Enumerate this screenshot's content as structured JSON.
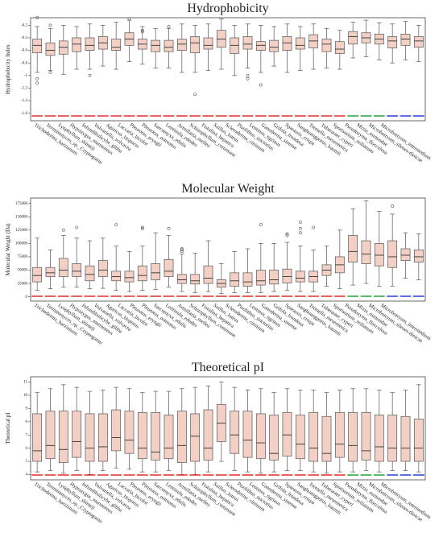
{
  "chart_data": [
    {
      "type": "box",
      "title": "Hydrophobicity",
      "ylabel": "Hydrophobicity Index",
      "categories": [
        "Trichoderma_harzianum",
        "Termitomyces_sp._Cryptogamu",
        "Lyophyllum_shimeji",
        "Hypsizygus_marmoreus",
        "Infundibulicybe_gibba",
        "Volvariella_volvacea",
        "Agaricus_bisporus",
        "Laccaria_bicolor",
        "Pleurotus_eryngii",
        "Pleurotus_ostreatus",
        "Sarcomyxa_edulis",
        "Lentinula_edodes",
        "Armillaria_mellea",
        "Schizophyllum_commune",
        "Fistulina_hepatica",
        "Suillus_luteus",
        "Scleroderma_citrinum",
        "Pisolithus_tinctorius",
        "Lentinus_tigrinus",
        "Ganoderma_sinense",
        "Grifola_frondosa",
        "Sparassis_crispa",
        "Sanghuangporus_baumii",
        "Tremella_mesenterica",
        "Tuberaster_cyperi",
        "Sporisorium_reilianum",
        "Pseudozyma_flocculosa",
        "Mixia_osmundae",
        "Microbotryum_silenes-dioicae",
        "Microbotryum_intermedium"
      ],
      "category_colors": [
        "#e0201c",
        "#e0201c",
        "#e0201c",
        "#e0201c",
        "#e0201c",
        "#e0201c",
        "#e0201c",
        "#e0201c",
        "#e0201c",
        "#e0201c",
        "#e0201c",
        "#e0201c",
        "#e0201c",
        "#e0201c",
        "#e0201c",
        "#e0201c",
        "#e0201c",
        "#e0201c",
        "#e0201c",
        "#e0201c",
        "#e0201c",
        "#e0201c",
        "#e0201c",
        "#e0201c",
        "#1a9a2a",
        "#1a9a2a",
        "#1a9a2a",
        "#1c2fd6",
        "#1c2fd6",
        "#1c2fd6"
      ],
      "box_color": "#f2d0c6",
      "whisker_low": [
        -0.95,
        -0.92,
        -0.98,
        -0.9,
        -0.9,
        -0.85,
        -0.9,
        -0.78,
        -0.82,
        -0.88,
        -0.88,
        -0.95,
        -0.95,
        -0.92,
        -0.9,
        -1.0,
        -0.88,
        -0.95,
        -0.85,
        -0.95,
        -0.92,
        -0.9,
        -0.88,
        -0.9,
        -0.72,
        -0.7,
        -0.75,
        -0.8,
        -0.75,
        -0.78
      ],
      "q1": [
        -0.64,
        -0.68,
        -0.66,
        -0.62,
        -0.6,
        -0.58,
        -0.6,
        -0.52,
        -0.58,
        -0.62,
        -0.62,
        -0.6,
        -0.64,
        -0.58,
        -0.55,
        -0.65,
        -0.58,
        -0.6,
        -0.62,
        -0.6,
        -0.58,
        -0.56,
        -0.62,
        -0.65,
        -0.5,
        -0.48,
        -0.5,
        -0.56,
        -0.52,
        -0.55
      ],
      "median": [
        -0.52,
        -0.6,
        -0.55,
        -0.5,
        -0.52,
        -0.48,
        -0.55,
        -0.42,
        -0.5,
        -0.52,
        -0.55,
        -0.5,
        -0.48,
        -0.52,
        -0.42,
        -0.52,
        -0.5,
        -0.52,
        -0.55,
        -0.48,
        -0.52,
        -0.45,
        -0.5,
        -0.58,
        -0.38,
        -0.4,
        -0.42,
        -0.45,
        -0.42,
        -0.45
      ],
      "q3": [
        -0.42,
        -0.48,
        -0.45,
        -0.4,
        -0.4,
        -0.38,
        -0.42,
        -0.32,
        -0.42,
        -0.44,
        -0.44,
        -0.42,
        -0.38,
        -0.4,
        -0.28,
        -0.4,
        -0.38,
        -0.46,
        -0.44,
        -0.38,
        -0.4,
        -0.35,
        -0.42,
        -0.46,
        -0.3,
        -0.32,
        -0.34,
        -0.38,
        -0.34,
        -0.38
      ],
      "whisker_high": [
        -0.22,
        -0.25,
        -0.2,
        -0.22,
        -0.18,
        -0.2,
        -0.15,
        -0.12,
        -0.22,
        -0.25,
        -0.25,
        -0.18,
        -0.2,
        -0.18,
        -0.1,
        -0.2,
        -0.18,
        -0.2,
        -0.22,
        -0.18,
        -0.22,
        -0.18,
        -0.25,
        -0.28,
        -0.15,
        -0.12,
        -0.16,
        -0.18,
        -0.14,
        -0.2
      ],
      "outliers": [
        [
          -0.08,
          -1.05,
          -1.12
        ],
        [
          -0.2,
          -0.95
        ],
        [],
        [],
        [
          -1.0
        ],
        [],
        [],
        [
          -0.1
        ],
        [
          -0.28,
          -0.3
        ],
        [],
        [
          -0.22
        ],
        [],
        [
          -1.3
        ],
        [],
        [],
        [],
        [
          -1.0,
          -1.05
        ],
        [
          -1.15
        ],
        [],
        [],
        [],
        [],
        [],
        [],
        [],
        [],
        [],
        [],
        [],
        []
      ],
      "ylim": [
        -1.72,
        -0.08
      ],
      "yticks": [
        -1.6,
        -1.4,
        -1.2,
        -1.0,
        -0.8,
        -0.6,
        -0.4,
        -0.2
      ]
    },
    {
      "type": "box",
      "title": "Molecular Weight",
      "ylabel": "Molecular Weight (Da)",
      "categories": [
        "Trichoderma_harzianum",
        "Termitomyces_sp._Cryptogamu",
        "Lyophyllum_shimeji",
        "Hypsizygus_marmoreus",
        "Infundibulicybe_gibba",
        "Volvariella_volvacea",
        "Agaricus_bisporus",
        "Laccaria_bicolor",
        "Pleurotus_eryngii",
        "Pleurotus_ostreatus",
        "Sarcomyxa_edulis",
        "Lentinula_edodes",
        "Armillaria_mellea",
        "Schizophyllum_commune",
        "Fistulina_hepatica",
        "Suillus_luteus",
        "Scleroderma_citrinum",
        "Pisolithus_tinctorius",
        "Lentinus_tigrinus",
        "Ganoderma_sinense",
        "Grifola_frondosa",
        "Sparassis_crispa",
        "Sanghuangporus_baumii",
        "Tremella_mesenterica",
        "Tuberaster_cyperi",
        "Sporisorium_reilianum",
        "Pseudozyma_flocculosa",
        "Mixia_osmundae",
        "Microbotryum_silenes-dioicae",
        "Microbotryum_intermedium"
      ],
      "category_colors": [
        "#e0201c",
        "#e0201c",
        "#e0201c",
        "#e0201c",
        "#e0201c",
        "#e0201c",
        "#e0201c",
        "#e0201c",
        "#e0201c",
        "#e0201c",
        "#e0201c",
        "#e0201c",
        "#e0201c",
        "#e0201c",
        "#e0201c",
        "#e0201c",
        "#e0201c",
        "#e0201c",
        "#e0201c",
        "#e0201c",
        "#e0201c",
        "#e0201c",
        "#e0201c",
        "#e0201c",
        "#1a9a2a",
        "#1a9a2a",
        "#1a9a2a",
        "#1c2fd6",
        "#1c2fd6",
        "#1c2fd6"
      ],
      "box_color": "#f2d0c6",
      "whisker_low": [
        12000,
        15000,
        18000,
        18000,
        15000,
        16000,
        12000,
        10000,
        12000,
        14000,
        18000,
        10000,
        8000,
        10000,
        6000,
        8000,
        8000,
        8000,
        10000,
        12000,
        10000,
        10000,
        20000,
        15000,
        22000,
        25000,
        20000,
        20000,
        35000,
        32000
      ],
      "q1": [
        28000,
        38000,
        38000,
        38000,
        30000,
        38000,
        30000,
        28000,
        30000,
        32000,
        38000,
        25000,
        24000,
        25000,
        18000,
        20000,
        20000,
        22000,
        24000,
        26000,
        28000,
        28000,
        40000,
        45000,
        65000,
        62000,
        58000,
        55000,
        68000,
        65000
      ],
      "median": [
        40000,
        45000,
        50000,
        48000,
        42000,
        50000,
        38000,
        36000,
        40000,
        45000,
        48000,
        32000,
        30000,
        35000,
        25000,
        30000,
        28000,
        30000,
        32000,
        38000,
        35000,
        38000,
        50000,
        60000,
        85000,
        80000,
        78000,
        75000,
        78000,
        75000
      ],
      "q3": [
        55000,
        55000,
        72000,
        62000,
        58000,
        68000,
        48000,
        48000,
        58000,
        62000,
        70000,
        42000,
        42000,
        58000,
        32000,
        45000,
        45000,
        50000,
        50000,
        52000,
        48000,
        48000,
        60000,
        75000,
        115000,
        105000,
        100000,
        105000,
        90000,
        88000
      ],
      "whisker_high": [
        110000,
        88000,
        115000,
        110000,
        105000,
        110000,
        95000,
        85000,
        95000,
        120000,
        115000,
        80000,
        82000,
        105000,
        62000,
        85000,
        90000,
        100000,
        100000,
        102000,
        95000,
        88000,
        95000,
        125000,
        165000,
        180000,
        160000,
        155000,
        120000,
        118000
      ],
      "outliers": [
        [],
        [],
        [
          125000
        ],
        [
          130000
        ],
        [],
        [],
        [
          135000
        ],
        [],
        [
          130000,
          128000
        ],
        [],
        [
          128000
        ],
        [
          90000,
          88000,
          85000
        ],
        [],
        [],
        [],
        [],
        [],
        [
          135000
        ],
        [],
        [
          118000,
          115000
        ],
        [
          140000,
          128000,
          120000
        ],
        [
          130000
        ],
        [],
        [],
        [],
        [],
        [],
        [
          170000
        ],
        [],
        []
      ],
      "ylim": [
        -8000,
        185000
      ],
      "yticks": [
        0,
        25000,
        50000,
        75000,
        100000,
        125000,
        150000,
        175000
      ]
    },
    {
      "type": "box",
      "title": "Theoretical pI",
      "ylabel": "Theoretical pI",
      "categories": [
        "Trichoderma_harzianum",
        "Termitomyces_sp._Cryptogamu",
        "Lyophyllum_shimeji",
        "Hypsizygus_marmoreus",
        "Infundibulicybe_gibba",
        "Volvariella_volvacea",
        "Agaricus_bisporus",
        "Laccaria_bicolor",
        "Pleurotus_eryngii",
        "Pleurotus_ostreatus",
        "Sarcomyxa_edulis",
        "Lentinula_edodes",
        "Armillaria_mellea",
        "Schizophyllum_commune",
        "Fistulina_hepatica",
        "Suillus_luteus",
        "Scleroderma_citrinum",
        "Pisolithus_tinctorius",
        "Lentinus_tigrinus",
        "Ganoderma_sinense",
        "Grifola_frondosa",
        "Sparassis_crispa",
        "Sanghuangporus_baumii",
        "Tremella_mesenterica",
        "Tuberaster_cyperi",
        "Sporisorium_reilianum",
        "Pseudozyma_flocculosa",
        "Mixia_osmundae",
        "Microbotryum_silenes-dioicae",
        "Microbotryum_intermedium"
      ],
      "category_colors": [
        "#e0201c",
        "#e0201c",
        "#e0201c",
        "#e0201c",
        "#e0201c",
        "#e0201c",
        "#e0201c",
        "#e0201c",
        "#e0201c",
        "#e0201c",
        "#e0201c",
        "#e0201c",
        "#e0201c",
        "#e0201c",
        "#e0201c",
        "#e0201c",
        "#e0201c",
        "#e0201c",
        "#e0201c",
        "#e0201c",
        "#e0201c",
        "#e0201c",
        "#e0201c",
        "#e0201c",
        "#1a9a2a",
        "#1a9a2a",
        "#1a9a2a",
        "#1c2fd6",
        "#1c2fd6",
        "#1c2fd6"
      ],
      "box_color": "#f2d0c6",
      "whisker_low": [
        4.2,
        4.3,
        4.1,
        4.3,
        4.0,
        4.3,
        4.5,
        4.4,
        4.2,
        4.2,
        4.3,
        4.0,
        4.0,
        4.2,
        5.0,
        4.3,
        4.2,
        4.1,
        4.2,
        4.3,
        4.3,
        4.2,
        4.1,
        4.2,
        4.2,
        4.3,
        4.2,
        4.3,
        4.3,
        4.2
      ],
      "q1": [
        5.0,
        5.2,
        4.9,
        5.3,
        5.0,
        5.0,
        5.8,
        5.6,
        5.2,
        5.1,
        5.2,
        4.9,
        5.0,
        5.1,
        6.5,
        5.6,
        5.3,
        5.2,
        5.1,
        5.4,
        5.2,
        5.0,
        5.0,
        5.3,
        5.0,
        5.1,
        5.0,
        5.0,
        5.0,
        5.0
      ],
      "median": [
        5.8,
        6.2,
        5.9,
        6.5,
        6.0,
        6.1,
        6.8,
        6.6,
        6.0,
        5.7,
        6.0,
        6.2,
        6.9,
        6.0,
        7.9,
        7.0,
        6.6,
        6.4,
        5.6,
        7.0,
        6.3,
        6.0,
        5.6,
        6.3,
        6.2,
        5.8,
        6.1,
        6.0,
        6.0,
        6.0
      ],
      "q3": [
        8.6,
        8.8,
        8.8,
        8.8,
        8.6,
        8.6,
        8.9,
        8.8,
        8.7,
        8.7,
        8.5,
        8.8,
        8.6,
        8.9,
        9.3,
        8.8,
        8.8,
        8.6,
        8.5,
        8.7,
        8.5,
        8.7,
        8.4,
        8.7,
        8.7,
        8.7,
        8.5,
        8.5,
        8.4,
        8.2
      ],
      "whisker_high": [
        10.2,
        10.5,
        10.8,
        10.6,
        10.3,
        10.4,
        10.6,
        10.5,
        10.2,
        10.3,
        10.3,
        10.5,
        10.6,
        10.7,
        11.0,
        10.6,
        10.4,
        10.5,
        10.2,
        10.5,
        10.4,
        10.4,
        10.2,
        10.4,
        10.5,
        10.5,
        10.4,
        10.2,
        10.4,
        10.8
      ],
      "outliers": [
        [],
        [],
        [],
        [],
        [],
        [],
        [],
        [],
        [],
        [],
        [],
        [],
        [],
        [],
        [],
        [],
        [],
        [],
        [],
        [],
        [],
        [],
        [],
        [],
        [],
        [],
        [],
        [],
        [],
        []
      ],
      "ylim": [
        3.6,
        11.4
      ],
      "yticks": [
        4,
        5,
        6,
        7,
        8,
        9,
        10,
        11
      ]
    }
  ]
}
